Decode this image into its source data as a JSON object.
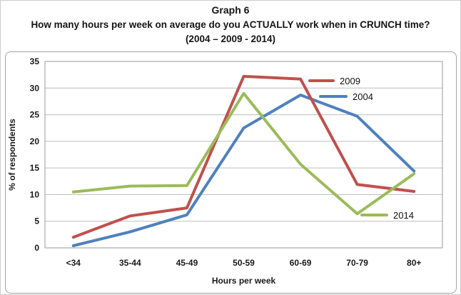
{
  "header": {
    "title": "Graph 6",
    "subtitle": "How many hours per week on average do you ACTUALLY work when in CRUNCH time?",
    "subtitle2": "(2004 – 2009 - 2014)"
  },
  "colors": {
    "series_2009": "#C0504D",
    "series_2004": "#4F81BD",
    "series_2014": "#9BBB59",
    "gridline": "#bdbdbd",
    "plot_border": "#9a9a9a",
    "text": "#1a1a1a"
  },
  "chart_data": {
    "type": "line",
    "title": "Graph 6",
    "categories": [
      "<34",
      "35-44",
      "45-49",
      "50-59",
      "60-69",
      "70-79",
      "80+"
    ],
    "series": [
      {
        "name": "2009",
        "color": "#C0504D",
        "values": [
          2.0,
          6.0,
          7.5,
          32.2,
          31.7,
          11.9,
          10.6
        ]
      },
      {
        "name": "2004",
        "color": "#4F81BD",
        "values": [
          0.4,
          3.0,
          6.2,
          22.5,
          28.7,
          24.7,
          14.4
        ]
      },
      {
        "name": "2014",
        "color": "#9BBB59",
        "values": [
          10.5,
          11.6,
          11.7,
          29.0,
          15.7,
          6.4,
          13.9
        ]
      }
    ],
    "xlabel": "Hours per week",
    "ylabel": "% of respondents",
    "ylim": [
      0,
      35
    ],
    "yticks": [
      0,
      5,
      10,
      15,
      20,
      25,
      30,
      35
    ],
    "grid": true,
    "legend_position": "floating",
    "legend": [
      {
        "name": "2009"
      },
      {
        "name": "2004"
      },
      {
        "name": "2014"
      }
    ]
  }
}
